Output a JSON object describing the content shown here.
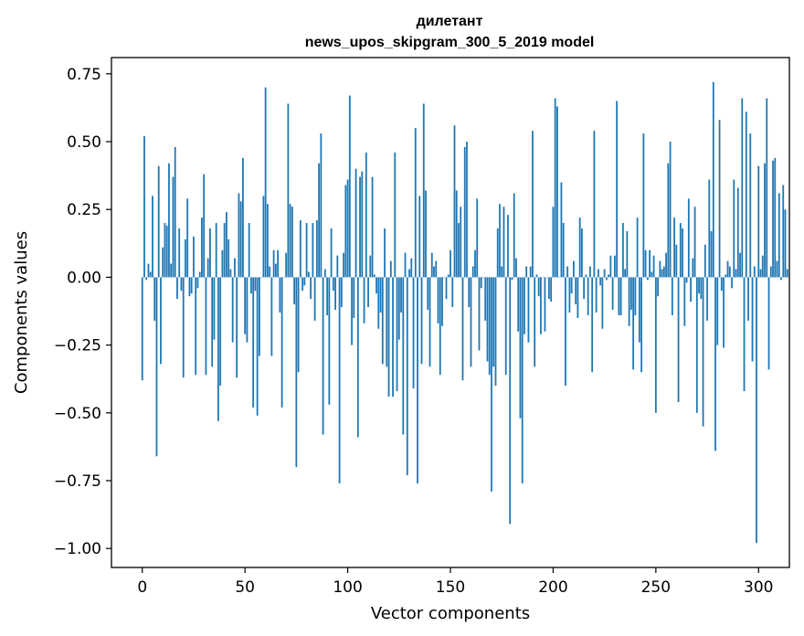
{
  "chart_data": {
    "type": "bar",
    "title_line1": "дилетант",
    "title_line2": "news_upos_skipgram_300_5_2019 model",
    "xlabel": "Vector components",
    "ylabel": "Components values",
    "xlim": [
      -15,
      315
    ],
    "ylim": [
      -1.07,
      0.81
    ],
    "xticks": [
      "0",
      "50",
      "100",
      "150",
      "200",
      "250",
      "300"
    ],
    "yticks": [
      "0.75",
      "0.50",
      "0.25",
      "0.00",
      "−0.25",
      "−0.50",
      "−0.75",
      "−1.00"
    ],
    "bar_color": "#1f77b4",
    "grid": false,
    "values": [
      -0.38,
      0.52,
      -0.01,
      0.05,
      0.02,
      0.3,
      -0.16,
      -0.66,
      0.41,
      -0.32,
      0.11,
      0.2,
      0.19,
      0.42,
      0.05,
      0.37,
      0.48,
      -0.08,
      0.18,
      -0.05,
      -0.37,
      0.14,
      0.29,
      -0.07,
      -0.06,
      0.15,
      -0.36,
      -0.04,
      0.02,
      0.22,
      0.38,
      -0.36,
      0.07,
      0.18,
      -0.33,
      -0.23,
      0.2,
      -0.53,
      -0.4,
      0.1,
      0.2,
      0.24,
      0.14,
      0.03,
      -0.24,
      0.07,
      -0.37,
      0.31,
      0.28,
      0.44,
      -0.21,
      -0.24,
      0.2,
      -0.06,
      -0.48,
      -0.05,
      -0.51,
      -0.29,
      0.0,
      0.3,
      0.7,
      0.27,
      0.04,
      -0.29,
      0.1,
      0.05,
      0.1,
      -0.13,
      -0.48,
      0.0,
      0.09,
      0.64,
      0.27,
      0.26,
      -0.1,
      -0.7,
      -0.35,
      0.21,
      -0.05,
      -0.03,
      0.2,
      0.02,
      -0.08,
      0.2,
      -0.16,
      0.21,
      0.42,
      0.53,
      -0.58,
      0.03,
      -0.14,
      -0.47,
      0.18,
      -0.05,
      -0.12,
      0.08,
      -0.76,
      -0.11,
      0.09,
      0.34,
      0.36,
      0.67,
      -0.25,
      -0.15,
      0.4,
      -0.59,
      0.37,
      0.39,
      -0.17,
      0.46,
      -0.11,
      0.08,
      0.37,
      0.01,
      -0.06,
      -0.19,
      -0.13,
      -0.32,
      0.18,
      -0.33,
      -0.44,
      0.06,
      -0.44,
      0.46,
      -0.42,
      -0.23,
      -0.13,
      -0.58,
      0.09,
      -0.73,
      0.03,
      0.07,
      -0.41,
      0.55,
      -0.76,
      0.3,
      -0.32,
      0.64,
      0.32,
      -0.12,
      -0.33,
      0.09,
      0.04,
      0.06,
      -0.17,
      -0.36,
      -0.18,
      0.0,
      -0.08,
      0.01,
      0.1,
      -0.11,
      0.56,
      0.32,
      0.2,
      0.26,
      -0.38,
      0.48,
      0.5,
      -0.11,
      -0.33,
      0.04,
      0.1,
      0.29,
      -0.27,
      -0.04,
      0.0,
      -0.16,
      -0.31,
      -0.36,
      -0.79,
      -0.33,
      -0.4,
      0.18,
      0.27,
      0.04,
      0.26,
      -0.36,
      0.23,
      -0.91,
      -0.01,
      0.31,
      0.07,
      -0.2,
      -0.52,
      -0.76,
      -0.21,
      0.04,
      -0.24,
      0.04,
      0.54,
      -0.33,
      0.01,
      -0.07,
      -0.21,
      0.0,
      -0.2,
      0.0,
      -0.08,
      -0.09,
      0.26,
      0.66,
      0.63,
      0.0,
      0.35,
      0.2,
      -0.4,
      0.04,
      -0.13,
      -0.06,
      0.06,
      -0.1,
      -0.15,
      0.22,
      0.18,
      -0.08,
      0.01,
      -0.14,
      0.04,
      -0.35,
      0.54,
      -0.13,
      0.03,
      -0.03,
      -0.19,
      0.03,
      -0.01,
      0.01,
      0.08,
      -0.12,
      0.08,
      0.65,
      -0.14,
      -0.14,
      0.2,
      0.03,
      0.17,
      -0.18,
      -0.12,
      -0.34,
      -0.14,
      0.22,
      -0.24,
      -0.35,
      0.53,
      0.1,
      -0.01,
      0.1,
      0.02,
      0.08,
      -0.5,
      -0.07,
      0.06,
      0.03,
      0.04,
      0.09,
      0.42,
      0.5,
      -0.14,
      0.22,
      0.12,
      -0.46,
      0.2,
      0.18,
      -0.18,
      -0.02,
      0.29,
      -0.09,
      0.07,
      0.26,
      -0.5,
      -0.06,
      -0.08,
      -0.55,
      0.12,
      -0.16,
      0.36,
      0.17,
      0.72,
      -0.64,
      -0.25,
      0.58,
      -0.05,
      -0.26,
      0.01,
      0.06,
      0.04,
      -0.04,
      0.36,
      0.03,
      0.33,
      0.09,
      0.66,
      -0.42,
      0.61,
      -0.16,
      0.53,
      -0.31,
      0.04,
      -0.98,
      0.41,
      0.03,
      0.08,
      0.42,
      0.66,
      -0.34,
      0.04,
      0.43,
      0.44,
      0.06,
      0.31,
      -0.01,
      0.34,
      0.25,
      0.03
    ]
  }
}
